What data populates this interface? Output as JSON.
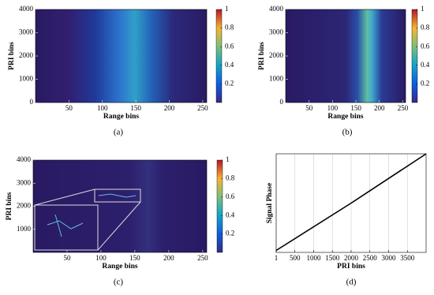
{
  "chart_data": [
    {
      "type": "heatmap",
      "caption": "(a)",
      "xlabel": "Range bins",
      "ylabel": "PRI bins",
      "xlim": [
        0,
        256
      ],
      "xticks": [
        50,
        100,
        150,
        200,
        250
      ],
      "ylim": [
        0,
        4000
      ],
      "yticks": [
        0,
        1000,
        2000,
        3000,
        4000
      ],
      "clim": [
        0,
        1
      ],
      "cticks": [
        0.2,
        0.4,
        0.6,
        0.8,
        1
      ]
    },
    {
      "type": "heatmap",
      "caption": "(b)",
      "xlabel": "Range bins",
      "ylabel": "PRI bins",
      "xlim": [
        0,
        256
      ],
      "xticks": [
        50,
        100,
        150,
        200,
        250
      ],
      "ylim": [
        0,
        4000
      ],
      "yticks": [
        0,
        1000,
        2000,
        3000,
        4000
      ],
      "clim": [
        0,
        1
      ],
      "cticks": [
        0.2,
        0.4,
        0.6,
        0.8,
        1
      ]
    },
    {
      "type": "heatmap",
      "caption": "(c)",
      "xlabel": "Range bins",
      "ylabel": "PRI bins",
      "xlim": [
        0,
        256
      ],
      "xticks": [
        50,
        100,
        150,
        200,
        250
      ],
      "ylim": [
        0,
        4000
      ],
      "yticks": [
        1000,
        2000,
        3000,
        4000
      ],
      "clim": [
        0,
        1
      ],
      "cticks": [
        0.2,
        0.4,
        0.6,
        0.8,
        1
      ]
    },
    {
      "type": "line",
      "caption": "(d)",
      "xlabel": "PRI bins",
      "ylabel": "Signal Phase",
      "xlim": [
        1,
        4000
      ],
      "xticks": [
        1,
        500,
        1000,
        1500,
        2000,
        2500,
        3000,
        3500
      ],
      "ylim": [
        0,
        1
      ],
      "grid": "x",
      "color": "#000000",
      "x": [
        1,
        2000,
        4000
      ],
      "y": [
        0.02,
        0.5,
        1.0
      ]
    }
  ]
}
